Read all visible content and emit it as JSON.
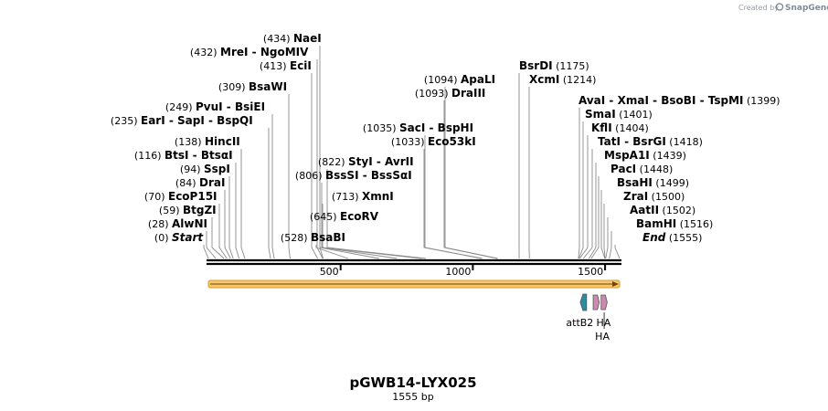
{
  "header": {
    "created_by": "Created by",
    "brand": "SnapGene"
  },
  "map": {
    "title": "pGWB14-LYX025",
    "subtitle": "1555 bp",
    "length": 1555
  },
  "colors": {
    "backbone": "#000000",
    "orf_fill": "#f9c66d",
    "orf_stroke": "#d89a2c",
    "attb": "#2e8ba0",
    "ha": "#c98cae"
  },
  "chart_data": {
    "type": "linear-plasmid-map",
    "title": "pGWB14-LYX025",
    "length_bp": 1555,
    "ticks": [
      500,
      1000,
      1500
    ],
    "sites_left": [
      {
        "pos": 0,
        "pos_label": "(0)",
        "names": [
          "Start"
        ],
        "italic": true
      },
      {
        "pos": 28,
        "pos_label": "(28)",
        "names": [
          "AlwNI"
        ]
      },
      {
        "pos": 59,
        "pos_label": "(59)",
        "names": [
          "BtgZI"
        ]
      },
      {
        "pos": 70,
        "pos_label": "(70)",
        "names": [
          "EcoP15I"
        ]
      },
      {
        "pos": 84,
        "pos_label": "(84)",
        "names": [
          "DraI"
        ]
      },
      {
        "pos": 94,
        "pos_label": "(94)",
        "names": [
          "SspI"
        ]
      },
      {
        "pos": 116,
        "pos_label": "(116)",
        "names": [
          "BtsI",
          "BtsαI"
        ]
      },
      {
        "pos": 138,
        "pos_label": "(138)",
        "names": [
          "HincII"
        ]
      },
      {
        "pos": 235,
        "pos_label": "(235)",
        "names": [
          "EarI",
          "SapI",
          "BspQI"
        ]
      },
      {
        "pos": 249,
        "pos_label": "(249)",
        "names": [
          "PvuI",
          "BsiEI"
        ]
      },
      {
        "pos": 309,
        "pos_label": "(309)",
        "names": [
          "BsaWI"
        ]
      },
      {
        "pos": 413,
        "pos_label": "(413)",
        "names": [
          "EciI"
        ]
      },
      {
        "pos": 432,
        "pos_label": "(432)",
        "names": [
          "MreI",
          "NgoMIV"
        ]
      },
      {
        "pos": 434,
        "pos_label": "(434)",
        "names": [
          "NaeI"
        ]
      }
    ],
    "sites_mid": [
      {
        "pos": 528,
        "pos_label": "(528)",
        "names": [
          "BsaBI"
        ]
      },
      {
        "pos": 645,
        "pos_label": "(645)",
        "names": [
          "EcoRV"
        ]
      },
      {
        "pos": 713,
        "pos_label": "(713)",
        "names": [
          "XmnI"
        ]
      },
      {
        "pos": 806,
        "pos_label": "(806)",
        "names": [
          "BssSI",
          "BssSαI"
        ]
      },
      {
        "pos": 822,
        "pos_label": "(822)",
        "names": [
          "StyI",
          "AvrII"
        ]
      },
      {
        "pos": 1033,
        "pos_label": "(1033)",
        "names": [
          "Eco53kI"
        ]
      },
      {
        "pos": 1035,
        "pos_label": "(1035)",
        "names": [
          "SacI",
          "BspHI"
        ]
      },
      {
        "pos": 1093,
        "pos_label": "(1093)",
        "names": [
          "DraIII"
        ]
      },
      {
        "pos": 1094,
        "pos_label": "(1094)",
        "names": [
          "ApaLI"
        ]
      }
    ],
    "sites_right": [
      {
        "pos": 1175,
        "pos_label": "(1175)",
        "names": [
          "BsrDI"
        ]
      },
      {
        "pos": 1214,
        "pos_label": "(1214)",
        "names": [
          "XcmI"
        ]
      },
      {
        "pos": 1399,
        "pos_label": "(1399)",
        "names": [
          "AvaI",
          "XmaI",
          "BsoBI",
          "TspMI"
        ]
      },
      {
        "pos": 1401,
        "pos_label": "(1401)",
        "names": [
          "SmaI"
        ]
      },
      {
        "pos": 1404,
        "pos_label": "(1404)",
        "names": [
          "KflI"
        ]
      },
      {
        "pos": 1418,
        "pos_label": "(1418)",
        "names": [
          "TatI",
          "BsrGI"
        ]
      },
      {
        "pos": 1439,
        "pos_label": "(1439)",
        "names": [
          "MspA1I"
        ]
      },
      {
        "pos": 1448,
        "pos_label": "(1448)",
        "names": [
          "PacI"
        ]
      },
      {
        "pos": 1499,
        "pos_label": "(1499)",
        "names": [
          "BsaHI"
        ]
      },
      {
        "pos": 1500,
        "pos_label": "(1500)",
        "names": [
          "ZraI"
        ]
      },
      {
        "pos": 1502,
        "pos_label": "(1502)",
        "names": [
          "AatII"
        ]
      },
      {
        "pos": 1516,
        "pos_label": "(1516)",
        "names": [
          "BamHI"
        ]
      },
      {
        "pos": 1555,
        "pos_label": "(1555)",
        "names": [
          "End"
        ],
        "italic": true
      }
    ],
    "features": [
      {
        "name": "ORF",
        "start": 0,
        "end": 1555,
        "type": "orf"
      },
      {
        "name": "attB2",
        "start": 1406,
        "end": 1430,
        "type": "attb"
      },
      {
        "name": "HA",
        "start": 1455,
        "end": 1478,
        "type": "ha"
      },
      {
        "name": "HA",
        "start": 1485,
        "end": 1508,
        "type": "ha"
      }
    ]
  }
}
